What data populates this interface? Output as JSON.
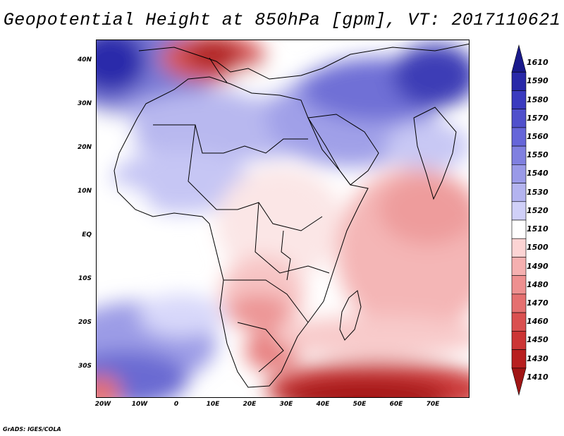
{
  "title": "Geopotential Height at 850hPa [gpm], VT: 2017110621",
  "lat_labels": [
    "40N",
    "30N",
    "20N",
    "10N",
    "EQ",
    "10S",
    "20S",
    "30S"
  ],
  "lon_labels": [
    "20W",
    "10W",
    "0",
    "10E",
    "20E",
    "30E",
    "40E",
    "50E",
    "60E",
    "70E"
  ],
  "colorbar": {
    "levels": [
      "1610",
      "1590",
      "1580",
      "1570",
      "1560",
      "1550",
      "1540",
      "1530",
      "1520",
      "1510",
      "1500",
      "1490",
      "1480",
      "1470",
      "1460",
      "1450",
      "1430",
      "1410"
    ],
    "colors": [
      "#1a1a8c",
      "#2828a8",
      "#3a3abf",
      "#5050cc",
      "#6666d9",
      "#8080e0",
      "#9a9ae8",
      "#b4b4f0",
      "#d0d0f8",
      "#ffffff",
      "#fcd4d4",
      "#f5b0b0",
      "#ee9090",
      "#e57070",
      "#da5050",
      "#cc3535",
      "#b82020",
      "#a01515"
    ]
  },
  "regions": {
    "north_atlantic": "high",
    "europe_mediterranean": "low",
    "middle_east": "high",
    "indian_ocean": "low",
    "southern_ocean": "low"
  },
  "credit": "GrADS: IGES/COLA"
}
